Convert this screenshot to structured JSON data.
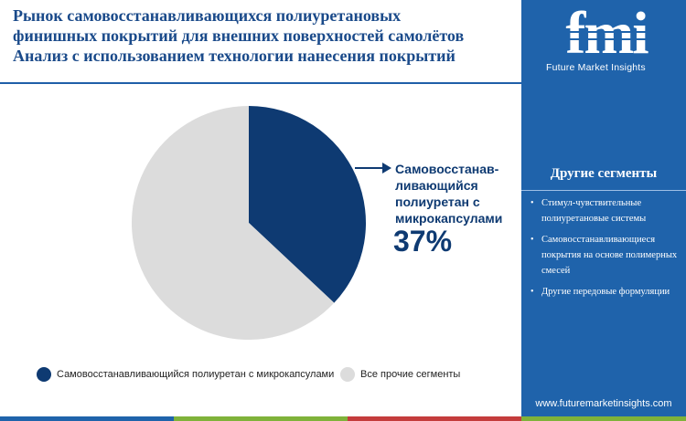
{
  "header": {
    "title_lines": [
      "Рынок самовосстанавливающихся полиуретановых",
      "финишных покрытий для внешних поверхностей самолётов",
      "Анализ с использованием технологии нанесения покрытий"
    ]
  },
  "brand": {
    "logo_text": "fmi",
    "subtitle": "Future Market Insights",
    "url": "www.futuremarketinsights.com"
  },
  "sidebar": {
    "heading": "Другие сегменты",
    "items": [
      "Стимул-чувствительные полиуретановые системы",
      "Самовосстанавливающиеся покрытия на основе полимерных смесей",
      "Другие передовые формуляции"
    ]
  },
  "callout": {
    "label": "Самовосстанав-ливающийся полиуретан с микрокапсулами",
    "value": "37%"
  },
  "colors": {
    "accent": "#0e3a72",
    "other": "#dcdcdc",
    "sidebar": "#1f63ab",
    "bar_segments": [
      "#1f63ab",
      "#7fb23a",
      "#c43c3c",
      "#7fb23a"
    ]
  },
  "chart_data": {
    "type": "pie",
    "slices": [
      {
        "name": "Самовосстанавливающийся полиуретан с микрокапсулами",
        "value": 37,
        "color": "#0e3a72"
      },
      {
        "name": "Все прочие сегменты",
        "value": 63,
        "color": "#dcdcdc"
      }
    ],
    "legend_labels": [
      "Самовосстанавливающийся полиуретан с микрокапсулами",
      "Все прочие сегменты"
    ],
    "legend_placement": "bottom"
  }
}
